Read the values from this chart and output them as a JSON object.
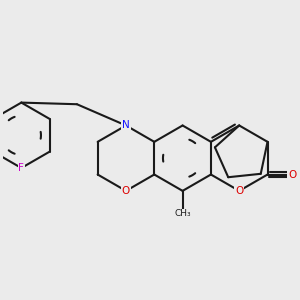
{
  "bg": "#ebebeb",
  "bond_color": "#1a1a1a",
  "bond_lw": 1.5,
  "N_color": "#1111ff",
  "O_color": "#dd0000",
  "F_color": "#cc00cc",
  "figsize": [
    3.0,
    3.0
  ],
  "dpi": 100,
  "xlim": [
    -5.5,
    3.5
  ],
  "ylim": [
    -2.5,
    3.0
  ]
}
